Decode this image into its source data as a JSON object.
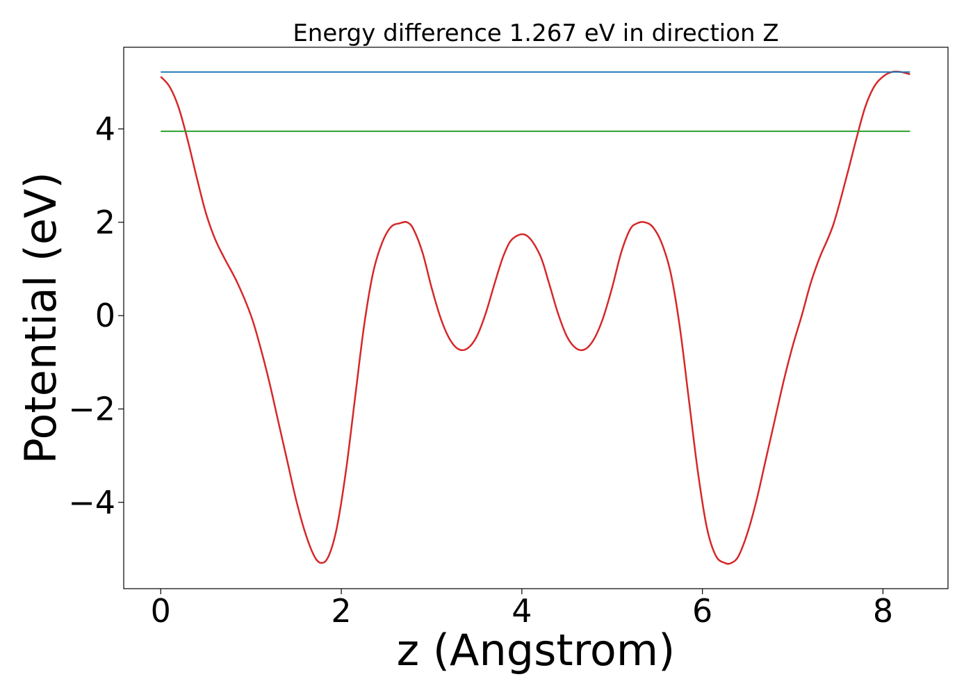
{
  "chart_data": {
    "type": "line",
    "title": "Energy difference 1.267 eV in direction Z",
    "xlabel": "z (Angstrom)",
    "ylabel": "Potential (eV)",
    "xlim": [
      -0.41,
      8.72
    ],
    "ylim": [
      -5.85,
      5.75
    ],
    "xticks": [
      0,
      2,
      4,
      6,
      8
    ],
    "xtick_labels": [
      "0",
      "2",
      "4",
      "6",
      "8"
    ],
    "yticks": [
      -4,
      -2,
      0,
      2,
      4
    ],
    "ytick_labels": [
      "−4",
      "−2",
      "0",
      "2",
      "4"
    ],
    "grid": false,
    "series": [
      {
        "color": "#d62728",
        "style": "curve",
        "x": [
          0,
          0.1,
          0.2,
          0.3,
          0.4,
          0.5,
          0.6,
          0.7,
          0.85,
          1.0,
          1.1,
          1.2,
          1.3,
          1.4,
          1.5,
          1.6,
          1.7,
          1.78,
          1.86,
          1.95,
          2.05,
          2.15,
          2.25,
          2.35,
          2.45,
          2.55,
          2.65,
          2.73,
          2.8,
          2.9,
          3.0,
          3.1,
          3.2,
          3.3,
          3.4,
          3.5,
          3.6,
          3.7,
          3.8,
          3.9,
          4.05,
          4.2,
          4.3,
          4.4,
          4.5,
          4.6,
          4.7,
          4.8,
          4.9,
          5.0,
          5.1,
          5.2,
          5.28,
          5.36,
          5.45,
          5.55,
          5.65,
          5.75,
          5.85,
          5.95,
          6.05,
          6.15,
          6.25,
          6.32,
          6.4,
          6.5,
          6.6,
          6.7,
          6.8,
          6.9,
          7.0,
          7.1,
          7.2,
          7.3,
          7.45,
          7.6,
          7.7,
          7.8,
          7.9,
          8.0,
          8.1,
          8.2,
          8.3
        ],
        "y": [
          5.12,
          4.9,
          4.45,
          3.75,
          2.95,
          2.2,
          1.65,
          1.25,
          0.7,
          0.0,
          -0.65,
          -1.4,
          -2.25,
          -3.1,
          -3.95,
          -4.65,
          -5.15,
          -5.3,
          -5.15,
          -4.55,
          -3.35,
          -1.8,
          -0.25,
          0.9,
          1.55,
          1.9,
          1.98,
          2.0,
          1.85,
          1.35,
          0.6,
          -0.05,
          -0.5,
          -0.72,
          -0.7,
          -0.45,
          0.05,
          0.7,
          1.3,
          1.65,
          1.72,
          1.3,
          0.7,
          0.05,
          -0.45,
          -0.7,
          -0.72,
          -0.5,
          -0.05,
          0.6,
          1.35,
          1.85,
          1.98,
          2.0,
          1.9,
          1.55,
          0.9,
          -0.25,
          -1.8,
          -3.35,
          -4.55,
          -5.15,
          -5.3,
          -5.3,
          -5.15,
          -4.65,
          -3.95,
          -3.1,
          -2.25,
          -1.4,
          -0.65,
          0.0,
          0.7,
          1.25,
          1.95,
          3.0,
          3.75,
          4.45,
          4.9,
          5.12,
          5.22,
          5.22,
          5.17
        ]
      },
      {
        "color": "#1f77b4",
        "style": "line",
        "x": [
          0,
          8.3
        ],
        "y": [
          5.22,
          5.22
        ]
      },
      {
        "color": "#2ca02c",
        "style": "line",
        "x": [
          0,
          8.3
        ],
        "y": [
          3.95,
          3.95
        ]
      }
    ]
  }
}
